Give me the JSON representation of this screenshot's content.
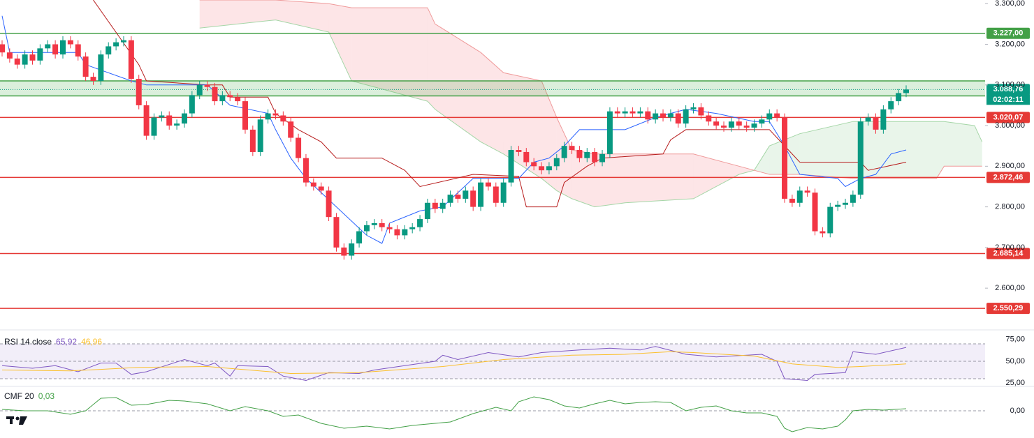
{
  "chart_data": [
    {
      "type": "candlestick",
      "up_color": "#089981",
      "down_color": "#f23645",
      "ylim": [
        2499,
        3309
      ],
      "yticks": [
        {
          "value": 3300,
          "label": "3.300,00"
        },
        {
          "value": 3200,
          "label": "3.200,00"
        },
        {
          "value": 3100,
          "label": "3.100,00"
        },
        {
          "value": 3000,
          "label": "3.000,00"
        },
        {
          "value": 2900,
          "label": "2.900,00"
        },
        {
          "value": 2800,
          "label": "2.800,00"
        },
        {
          "value": 2700,
          "label": "2.700,00"
        },
        {
          "value": 2600,
          "label": "2.600,00"
        }
      ],
      "grid": false,
      "open": [
        3200,
        3180,
        3165,
        3150,
        3175,
        3160,
        3190,
        3200,
        3175,
        3210,
        3200,
        3170,
        3120,
        3110,
        3175,
        3195,
        3205,
        3210,
        3115,
        3050,
        2975,
        3020,
        3025,
        3000,
        3005,
        3030,
        3075,
        3100,
        3095,
        3060,
        3075,
        3070,
        3060,
        2990,
        2935,
        3015,
        3030,
        3025,
        3010,
        2970,
        2920,
        2860,
        2850,
        2840,
        2775,
        2700,
        2680,
        2710,
        2740,
        2755,
        2760,
        2750,
        2745,
        2730,
        2745,
        2750,
        2770,
        2810,
        2795,
        2810,
        2830,
        2820,
        2840,
        2800,
        2860,
        2850,
        2810,
        2860,
        2940,
        2935,
        2910,
        2900,
        2890,
        2900,
        2920,
        2950,
        2940,
        2920,
        2935,
        2910,
        2930,
        3035,
        3030,
        3035,
        3030,
        3035,
        3015,
        3030,
        3020,
        3030,
        3005,
        3040,
        3045,
        3025,
        3010,
        3000,
        2995,
        3010,
        3000,
        2995,
        3005,
        3015,
        3030,
        3020,
        2820,
        2810,
        2840,
        2835,
        2740,
        2735,
        2800,
        2805,
        2810,
        2830,
        3010,
        3020,
        2990,
        3040,
        3060,
        3080
      ],
      "high": [
        3210,
        3190,
        3175,
        3185,
        3185,
        3200,
        3210,
        3210,
        3220,
        3220,
        3210,
        3180,
        3130,
        3185,
        3205,
        3215,
        3220,
        3220,
        3125,
        3060,
        3030,
        3035,
        3035,
        3015,
        3040,
        3085,
        3110,
        3110,
        3105,
        3085,
        3085,
        3080,
        3070,
        3000,
        3025,
        3040,
        3040,
        3035,
        3020,
        2980,
        2930,
        2870,
        2860,
        2850,
        2785,
        2710,
        2720,
        2750,
        2765,
        2770,
        2770,
        2760,
        2755,
        2755,
        2760,
        2780,
        2820,
        2820,
        2820,
        2840,
        2840,
        2850,
        2850,
        2870,
        2870,
        2860,
        2870,
        2950,
        2950,
        2945,
        2920,
        2910,
        2910,
        2930,
        2960,
        2960,
        2950,
        2945,
        2945,
        2940,
        3045,
        3045,
        3045,
        3045,
        3045,
        3045,
        3040,
        3040,
        3040,
        3040,
        3050,
        3055,
        3055,
        3035,
        3020,
        3010,
        3020,
        3020,
        3010,
        3015,
        3025,
        3040,
        3040,
        3030,
        2830,
        2850,
        2850,
        2845,
        2750,
        2810,
        2815,
        2820,
        2840,
        3020,
        3030,
        3030,
        3050,
        3070,
        3090,
        3099
      ],
      "low": [
        3170,
        3155,
        3140,
        3140,
        3150,
        3150,
        3180,
        3165,
        3165,
        3190,
        3160,
        3110,
        3100,
        3100,
        3165,
        3185,
        3195,
        3105,
        3040,
        2965,
        2965,
        3010,
        2990,
        2990,
        2995,
        3020,
        3065,
        3085,
        3050,
        3050,
        3060,
        3050,
        2980,
        2925,
        2925,
        3005,
        3015,
        3000,
        2960,
        2910,
        2850,
        2840,
        2830,
        2765,
        2690,
        2670,
        2670,
        2700,
        2730,
        2745,
        2740,
        2735,
        2720,
        2720,
        2735,
        2740,
        2760,
        2785,
        2785,
        2800,
        2810,
        2810,
        2790,
        2790,
        2840,
        2800,
        2800,
        2850,
        2925,
        2900,
        2890,
        2880,
        2880,
        2890,
        2910,
        2930,
        2910,
        2910,
        2900,
        2900,
        2920,
        3020,
        3020,
        3020,
        3020,
        3005,
        3005,
        3010,
        3010,
        2995,
        2995,
        3030,
        3015,
        3000,
        2990,
        2985,
        2985,
        2990,
        2985,
        2985,
        2995,
        3005,
        3010,
        2810,
        2800,
        2800,
        2825,
        2730,
        2725,
        2725,
        2790,
        2795,
        2800,
        2820,
        3000,
        2980,
        2980,
        3030,
        3050,
        3070
      ],
      "close": [
        3180,
        3165,
        3150,
        3175,
        3160,
        3190,
        3200,
        3175,
        3210,
        3200,
        3170,
        3120,
        3110,
        3175,
        3195,
        3205,
        3210,
        3115,
        3050,
        2975,
        3020,
        3025,
        3000,
        3005,
        3030,
        3075,
        3100,
        3095,
        3060,
        3075,
        3070,
        3060,
        2990,
        2935,
        3015,
        3030,
        3025,
        3010,
        2970,
        2920,
        2860,
        2850,
        2840,
        2775,
        2700,
        2680,
        2710,
        2740,
        2755,
        2760,
        2750,
        2745,
        2730,
        2745,
        2750,
        2770,
        2810,
        2795,
        2810,
        2830,
        2820,
        2840,
        2800,
        2860,
        2850,
        2810,
        2860,
        2940,
        2935,
        2910,
        2900,
        2890,
        2900,
        2920,
        2950,
        2940,
        2920,
        2935,
        2910,
        2930,
        3035,
        3030,
        3035,
        3030,
        3035,
        3015,
        3030,
        3020,
        3030,
        3005,
        3040,
        3045,
        3025,
        3010,
        3000,
        2995,
        3010,
        3000,
        2995,
        3005,
        3015,
        3030,
        3020,
        2820,
        2810,
        2840,
        2835,
        2740,
        2735,
        2800,
        2805,
        2810,
        2830,
        3010,
        3020,
        2990,
        3040,
        3060,
        3080,
        3088.76
      ],
      "cloud": {
        "x": [
          26,
          36,
          43,
          46,
          56,
          57,
          63,
          66,
          71,
          73,
          75,
          78,
          82,
          91,
          97,
          99,
          101,
          105,
          112,
          119,
          123,
          124,
          128,
          129
        ],
        "span_a": [
          3240,
          3260,
          3230,
          3110,
          3060,
          3040,
          2960,
          2930,
          2870,
          2840,
          2820,
          2800,
          2810,
          2820,
          2880,
          2890,
          2950,
          2980,
          3010,
          3010,
          3010,
          3010,
          3000,
          2960
        ],
        "span_b": [
          3309,
          3309,
          3300,
          3290,
          3290,
          3250,
          3180,
          3130,
          3110,
          3020,
          2940,
          2930,
          2930,
          2930,
          2900,
          2890,
          2880,
          2880,
          2870,
          2870,
          2870,
          2900,
          2900,
          2900
        ],
        "up_fill": "rgba(76,175,80,0.12)",
        "down_fill": "rgba(242,54,69,0.13)",
        "a_color": "#a5d6a7",
        "b_color": "#ef9a9a"
      },
      "lines": [
        {
          "color": "#b71c1c",
          "x": [
            12,
            18,
            19,
            27,
            29,
            30,
            35,
            36,
            39,
            42,
            44,
            50,
            53,
            55,
            62,
            68,
            69,
            73,
            74,
            77,
            79,
            87,
            88,
            90,
            101,
            105,
            113,
            114,
            119
          ],
          "values": [
            3309,
            3150,
            3110,
            3100,
            3100,
            3070,
            3070,
            3030,
            2990,
            2960,
            2920,
            2920,
            2890,
            2850,
            2880,
            2875,
            2800,
            2800,
            2860,
            2900,
            2920,
            2930,
            2965,
            2990,
            2990,
            2910,
            2910,
            2890,
            2910
          ]
        },
        {
          "color": "#2962ff",
          "x": [
            0,
            1,
            10,
            11,
            17,
            19,
            27,
            30,
            35,
            36,
            38,
            40,
            44,
            48,
            50,
            51,
            55,
            58,
            62,
            68,
            70,
            72,
            74,
            76,
            82,
            86,
            90,
            94,
            99,
            101,
            103,
            105,
            110,
            111,
            113,
            115,
            117,
            119
          ],
          "values": [
            3270,
            3180,
            3180,
            3150,
            3110,
            3100,
            3100,
            3050,
            3030,
            2990,
            2920,
            2870,
            2800,
            2730,
            2710,
            2760,
            2790,
            2800,
            2870,
            2870,
            2910,
            2920,
            2950,
            2990,
            2990,
            3020,
            3040,
            3030,
            3010,
            3010,
            2950,
            2880,
            2870,
            2850,
            2870,
            2880,
            2930,
            2940
          ]
        }
      ],
      "zone": {
        "range": [
          3073,
          3110
        ],
        "fill": "rgba(76,175,80,0.2)",
        "color": "#43a047"
      },
      "levels": [
        {
          "value": 3227,
          "label": "3.227,00",
          "color": "#43a047"
        },
        {
          "value": 3088.76,
          "label": "3.088,76",
          "color": "#089981",
          "dotted": true,
          "countdown": "02:02:11"
        },
        {
          "value": 3020.07,
          "label": "3.020,07",
          "color": "#e53935"
        },
        {
          "value": 2872.46,
          "label": "2.872,46",
          "color": "#e53935"
        },
        {
          "value": 2685.14,
          "label": "2.685,14",
          "color": "#e53935"
        },
        {
          "value": 2550.29,
          "label": "2.550,29",
          "color": "#e53935"
        }
      ]
    },
    {
      "type": "line",
      "title": "RSI 14 close",
      "ylim": [
        22,
        82
      ],
      "yticks": [
        {
          "value": 75,
          "label": "75,00"
        },
        {
          "value": 50,
          "label": "50,00"
        },
        {
          "value": 25,
          "label": "25,00"
        }
      ],
      "hlines": [
        70,
        50,
        30
      ],
      "band": [
        30,
        70
      ],
      "band_fill": "rgba(126,87,194,0.1)",
      "series": [
        {
          "color": "#7e57c2",
          "label": "65,92",
          "x": [
            0,
            4,
            7,
            10,
            13,
            15,
            17,
            19,
            24,
            27,
            28,
            30,
            31,
            35,
            37,
            40,
            43,
            47,
            49,
            53,
            57,
            58,
            60,
            64,
            68,
            71,
            76,
            80,
            84,
            86,
            90,
            94,
            100,
            102,
            103,
            106,
            107,
            111,
            112,
            115,
            119
          ],
          "values": [
            45,
            42,
            45,
            38,
            48,
            48,
            35,
            38,
            52,
            45,
            48,
            33,
            45,
            44,
            33,
            28,
            37,
            36,
            40,
            45,
            50,
            57,
            52,
            60,
            55,
            60,
            63,
            65,
            63,
            67,
            58,
            55,
            58,
            50,
            30,
            28,
            35,
            37,
            61,
            58,
            65.92
          ]
        },
        {
          "color": "#fbc02d",
          "label": "46,96",
          "x": [
            0,
            9,
            18,
            27,
            38,
            47,
            58,
            66,
            75,
            82,
            88,
            91,
            99,
            104,
            110,
            113,
            119
          ],
          "values": [
            40,
            39,
            43,
            44,
            36,
            37,
            44,
            52,
            57,
            58,
            61,
            60,
            56,
            47,
            43,
            44,
            46.96
          ]
        }
      ]
    },
    {
      "type": "line",
      "title": "CMF 20",
      "ylim": [
        -0.35,
        0.33
      ],
      "yticks": [
        {
          "value": 0,
          "label": "0,00"
        }
      ],
      "hlines": [
        0
      ],
      "series": [
        {
          "color": "#43a047",
          "label": "0,03",
          "x": [
            0,
            3,
            6,
            9,
            11,
            13,
            15,
            17,
            19,
            22,
            24,
            27,
            30,
            32,
            35,
            37,
            39,
            42,
            45,
            48,
            51,
            54,
            57,
            59,
            62,
            65,
            67,
            68,
            70,
            72,
            74,
            76,
            78,
            80,
            82,
            84,
            86,
            88,
            90,
            92,
            94,
            96,
            98,
            100,
            102,
            103,
            104,
            106,
            108,
            110,
            111,
            112,
            114,
            116,
            119
          ],
          "values": [
            0.02,
            0,
            0,
            -0.05,
            0,
            0.18,
            0.19,
            0.08,
            0.09,
            0.15,
            0.14,
            0.1,
            0,
            0.06,
            0,
            -0.08,
            -0.06,
            -0.18,
            -0.25,
            -0.22,
            -0.26,
            -0.21,
            -0.18,
            -0.16,
            -0.04,
            0.05,
            0,
            0.13,
            0.2,
            0.16,
            0.07,
            0.04,
            0.1,
            0.15,
            0.1,
            0.12,
            0.13,
            0.12,
            0,
            0.05,
            0.07,
            0,
            -0.03,
            -0.03,
            -0.08,
            -0.25,
            -0.3,
            -0.24,
            -0.26,
            -0.22,
            -0.13,
            0,
            0.02,
            0.01,
            0.03
          ]
        }
      ]
    }
  ]
}
